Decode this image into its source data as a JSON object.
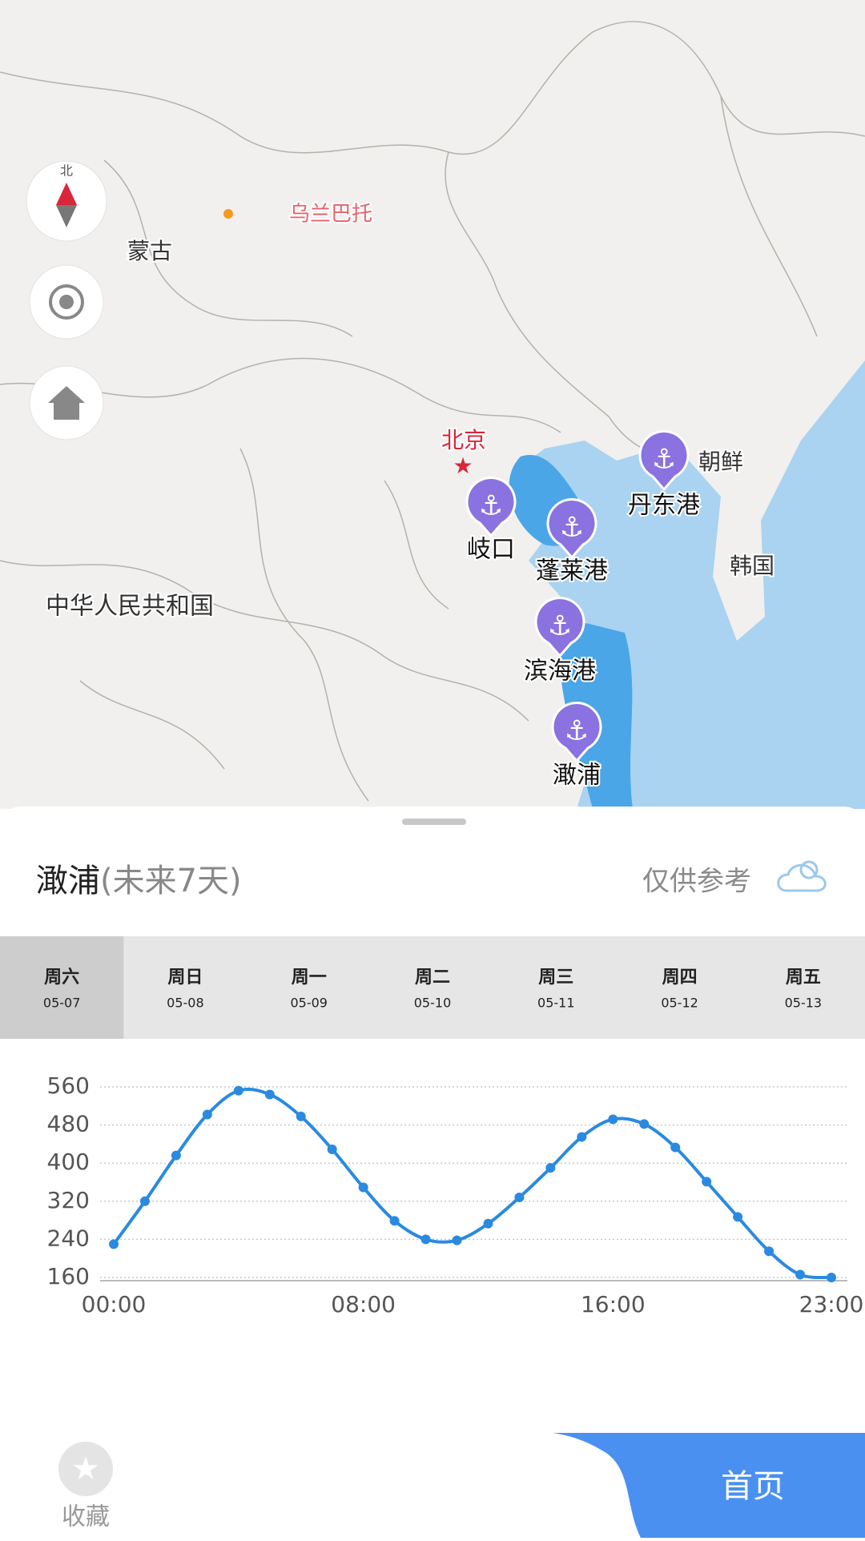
{
  "map": {
    "compass": "北",
    "labels": [
      "乌兰巴托",
      "蒙古",
      "北京",
      "中华人民共和国",
      "朝鲜",
      "韩国"
    ],
    "ports": [
      "岐口",
      "蓬莱港",
      "丹东港",
      "滨海港",
      "澉浦"
    ]
  },
  "header": {
    "port": "澉浦",
    "range": "(未来7天)",
    "note": "仅供参考"
  },
  "days": [
    {
      "name": "周六",
      "date": "05-07"
    },
    {
      "name": "周日",
      "date": "05-08"
    },
    {
      "name": "周一",
      "date": "05-09"
    },
    {
      "name": "周二",
      "date": "05-10"
    },
    {
      "name": "周三",
      "date": "05-11"
    },
    {
      "name": "周四",
      "date": "05-12"
    },
    {
      "name": "周五",
      "date": "05-13"
    }
  ],
  "chart_data": {
    "type": "line",
    "categories": [
      "00:00",
      null,
      null,
      null,
      null,
      null,
      null,
      null,
      "08:00",
      null,
      null,
      null,
      null,
      null,
      null,
      null,
      "16:00",
      null,
      null,
      null,
      null,
      null,
      null,
      "23:00"
    ],
    "values": [
      230,
      320,
      416,
      502,
      552,
      544,
      498,
      429,
      349,
      279,
      240,
      238,
      273,
      328,
      390,
      455,
      492,
      482,
      433,
      361,
      287,
      215,
      166,
      160
    ],
    "color": "#2a8ae0",
    "ylim": [
      160,
      560
    ],
    "yticks": [
      160,
      240,
      320,
      400,
      480,
      560
    ],
    "grid": true
  },
  "nav": {
    "favorite": "收藏",
    "home": "首页"
  }
}
